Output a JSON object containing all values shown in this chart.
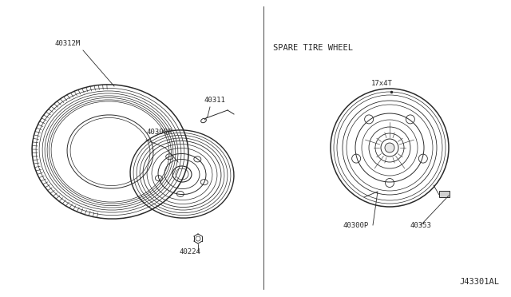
{
  "bg_color": "#ffffff",
  "line_color": "#2a2a2a",
  "part_40312M": "40312M",
  "part_40300P_left": "40300P",
  "part_40311": "40311",
  "part_40224": "40224",
  "part_40300P_right": "40300P",
  "part_40353": "40353",
  "title_spare": "SPARE TIRE WHEEL",
  "label_17x4T": "17x4T",
  "diagram_id": "J43301AL",
  "font_size_small": 6.5,
  "font_size_title": 7.5,
  "font_size_id": 7.5
}
